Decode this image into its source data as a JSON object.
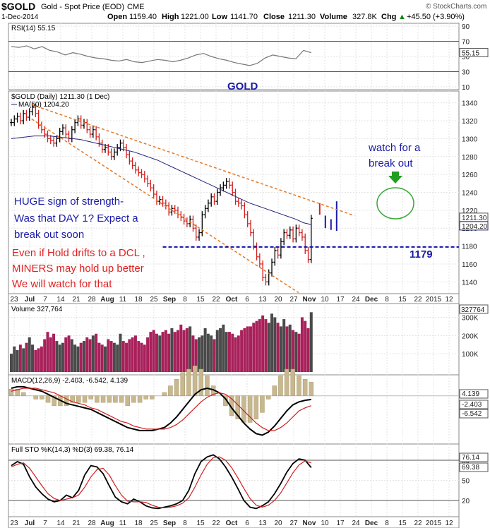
{
  "header": {
    "symbol": "$GOLD",
    "description": "Gold - Spot Price (EOD)",
    "exchange": "CME",
    "brand": "© StockCharts.com",
    "date": "1-Dec-2014",
    "open_label": "Open",
    "open": "1159.40",
    "high_label": "High",
    "high": "1221.00",
    "low_label": "Low",
    "low": "1141.70",
    "close_label": "Close",
    "close": "1211.30",
    "volume_label": "Volume",
    "volume": "327.8K",
    "chg_label": "Chg",
    "chg": "+45.50 (+3.90%)",
    "chg_arrow": "▲",
    "colors": {
      "up": "#000000",
      "down": "#d21f1f",
      "ma": "#24247a",
      "trend": "#e87722",
      "support": "#1010b0",
      "volume_up": "#4a4a4a",
      "volume_down": "#a8205a",
      "ribbon": "#c8b890"
    }
  },
  "chart_data": [
    {
      "type": "line",
      "panel": "RSI",
      "label": "RSI(14) 55.15",
      "last_value_label": "55.15",
      "ylim": [
        10,
        90
      ],
      "y_ticks": [
        "90",
        "70",
        "50",
        "30",
        "10"
      ],
      "levels": [
        70,
        30
      ],
      "annotation": "GOLD",
      "series": [
        {
          "name": "RSI(14)",
          "values": [
            63,
            62,
            64,
            60,
            63,
            58,
            56,
            52,
            55,
            53,
            50,
            48,
            47,
            45,
            44,
            46,
            43,
            42,
            44,
            46,
            45,
            43,
            45,
            48,
            52,
            54,
            50,
            47,
            45,
            42,
            40,
            38,
            41,
            48,
            52,
            50,
            48,
            47,
            58,
            55
          ]
        }
      ]
    },
    {
      "type": "candlestick",
      "panel": "Price",
      "label": "$GOLD (Daily) 1211.30 (1 Dec)",
      "ma_label": "MA(50) 1204.20",
      "price_badges": [
        "1211.30",
        "1204.20"
      ],
      "ylim": [
        1130,
        1350
      ],
      "y_ticks": [
        "1340",
        "1320",
        "1300",
        "1280",
        "1260",
        "1240",
        "1220",
        "1200",
        "1180",
        "1160",
        "1140"
      ],
      "x_tick_labels": [
        "23",
        "Jul",
        "7",
        "14",
        "21",
        "28",
        "Aug",
        "11",
        "18",
        "25",
        "Sep",
        "8",
        "15",
        "22",
        "Oct",
        "6",
        "13",
        "20",
        "27",
        "Nov",
        "10",
        "17",
        "24",
        "Dec",
        "8",
        "15",
        "22",
        "2015",
        "12"
      ],
      "closes": [
        1318,
        1322,
        1325,
        1320,
        1328,
        1324,
        1330,
        1335,
        1328,
        1315,
        1310,
        1305,
        1300,
        1298,
        1295,
        1300,
        1308,
        1312,
        1305,
        1300,
        1310,
        1318,
        1322,
        1315,
        1318,
        1310,
        1305,
        1310,
        1302,
        1295,
        1288,
        1290,
        1285,
        1280,
        1285,
        1290,
        1295,
        1290,
        1282,
        1275,
        1270,
        1265,
        1262,
        1260,
        1255,
        1250,
        1245,
        1238,
        1230,
        1232,
        1228,
        1225,
        1218,
        1222,
        1220,
        1215,
        1212,
        1208,
        1205,
        1210,
        1200,
        1190,
        1195,
        1215,
        1222,
        1228,
        1235,
        1230,
        1240,
        1245,
        1248,
        1252,
        1248,
        1240,
        1230,
        1228,
        1225,
        1215,
        1205,
        1195,
        1180,
        1168,
        1160,
        1145,
        1140,
        1150,
        1162,
        1175,
        1170,
        1185,
        1195,
        1192,
        1198,
        1188,
        1200,
        1195,
        1190,
        1175,
        1165,
        1211
      ],
      "ma50": [
        1300,
        1301,
        1302,
        1303,
        1303,
        1303,
        1302,
        1301,
        1300,
        1299,
        1297,
        1295,
        1293,
        1291,
        1289,
        1287,
        1285,
        1282,
        1279,
        1276,
        1272,
        1268,
        1264,
        1260,
        1256,
        1252,
        1248,
        1244,
        1240,
        1236,
        1232,
        1228,
        1225,
        1222,
        1219,
        1216,
        1213,
        1210,
        1206,
        1204
      ],
      "trendlines": [
        {
          "name": "upper",
          "from": [
            1338,
            1223
          ]
        },
        {
          "name": "lower",
          "from": [
            1322,
            1128
          ]
        }
      ],
      "support_level": 1179,
      "support_label": "1179",
      "annotations": [
        "watch for a",
        "break out",
        "HUGE sign of strength-",
        "Was that DAY 1? Expect a",
        "break out soon",
        "Even if Hold drifts to a DCL ,",
        "MINERS may hold up better",
        "We will watch for that"
      ]
    },
    {
      "type": "bar",
      "panel": "Volume",
      "label": "Volume 327,764",
      "last_value_label": "327764",
      "ylim": [
        0,
        360000
      ],
      "y_ticks": [
        "300K",
        "200K",
        "100K"
      ],
      "values": [
        100000,
        140000,
        120000,
        150000,
        130000,
        160000,
        190000,
        150000,
        120000,
        130000,
        140000,
        180000,
        220000,
        190000,
        210000,
        170000,
        150000,
        160000,
        190000,
        200000,
        180000,
        150000,
        140000,
        160000,
        170000,
        190000,
        180000,
        200000,
        210000,
        160000,
        150000,
        140000,
        180000,
        170000,
        160000,
        150000,
        210000,
        170000,
        160000,
        180000,
        190000,
        200000,
        170000,
        160000,
        150000,
        190000,
        220000,
        230000,
        210000,
        200000,
        220000,
        230000,
        210000,
        240000,
        220000,
        230000,
        260000,
        230000,
        240000,
        250000,
        200000,
        180000,
        190000,
        200000,
        240000,
        210000,
        200000,
        180000,
        230000,
        240000,
        260000,
        220000,
        220000,
        210000,
        190000,
        200000,
        230000,
        240000,
        250000,
        250000,
        270000,
        280000,
        290000,
        310000,
        290000,
        270000,
        320000,
        300000,
        270000,
        250000,
        290000,
        250000,
        260000,
        230000,
        220000,
        210000,
        300000,
        280000,
        240000,
        327764
      ]
    },
    {
      "type": "line",
      "panel": "MACD",
      "label": "MACD(12,26,9) -2.403, -6.542, 4.139",
      "value_labels": [
        "4.139",
        "-2.403",
        "-6.542"
      ],
      "ylim": [
        -30,
        12
      ],
      "series": [
        {
          "name": "MACD",
          "values": [
            5,
            6,
            6,
            5,
            4,
            3,
            1,
            -1,
            -3,
            -5,
            -6,
            -7,
            -8,
            -9,
            -11,
            -13,
            -15,
            -17,
            -19,
            -21,
            -22,
            -23,
            -23,
            -23,
            -22,
            -21,
            -18,
            -14,
            -9,
            -4,
            1,
            4,
            5,
            4,
            2,
            -2,
            -8,
            -13,
            -18,
            -22,
            -25,
            -26,
            -24,
            -20,
            -15,
            -10,
            -6,
            -4,
            -3,
            -2.4
          ]
        },
        {
          "name": "Signal",
          "values": [
            3,
            4,
            5,
            5,
            5,
            4,
            3,
            2,
            0,
            -2,
            -4,
            -5,
            -6,
            -8,
            -9,
            -11,
            -13,
            -15,
            -17,
            -18,
            -20,
            -21,
            -22,
            -22,
            -22,
            -22,
            -21,
            -19,
            -16,
            -12,
            -8,
            -4,
            -1,
            1,
            2,
            1,
            -2,
            -6,
            -10,
            -14,
            -18,
            -21,
            -23,
            -23,
            -21,
            -18,
            -14,
            -10,
            -8,
            -6.5
          ]
        }
      ]
    },
    {
      "type": "line",
      "panel": "Full STO",
      "label": "Full STO %K(14,3) %D(3) 69.38, 76.14",
      "value_labels": [
        "76.14",
        "69.38"
      ],
      "ylim": [
        0,
        100
      ],
      "y_ticks": [
        "80",
        "50",
        "20"
      ],
      "levels": [
        80,
        20
      ],
      "series": [
        {
          "name": "%K",
          "values": [
            72,
            78,
            74,
            55,
            40,
            30,
            22,
            18,
            20,
            28,
            24,
            35,
            58,
            72,
            70,
            60,
            42,
            25,
            18,
            15,
            22,
            18,
            12,
            9,
            8,
            10,
            12,
            15,
            20,
            35,
            60,
            78,
            85,
            88,
            82,
            70,
            55,
            38,
            20,
            10,
            8,
            12,
            18,
            30,
            45,
            62,
            75,
            82,
            80,
            69
          ]
        },
        {
          "name": "%D",
          "values": [
            70,
            74,
            76,
            68,
            55,
            42,
            30,
            23,
            20,
            22,
            24,
            28,
            40,
            55,
            66,
            68,
            58,
            42,
            28,
            19,
            18,
            18,
            17,
            13,
            10,
            9,
            10,
            12,
            16,
            24,
            40,
            58,
            74,
            84,
            85,
            80,
            69,
            54,
            38,
            23,
            13,
            10,
            13,
            20,
            31,
            46,
            61,
            73,
            79,
            76
          ]
        }
      ]
    }
  ]
}
